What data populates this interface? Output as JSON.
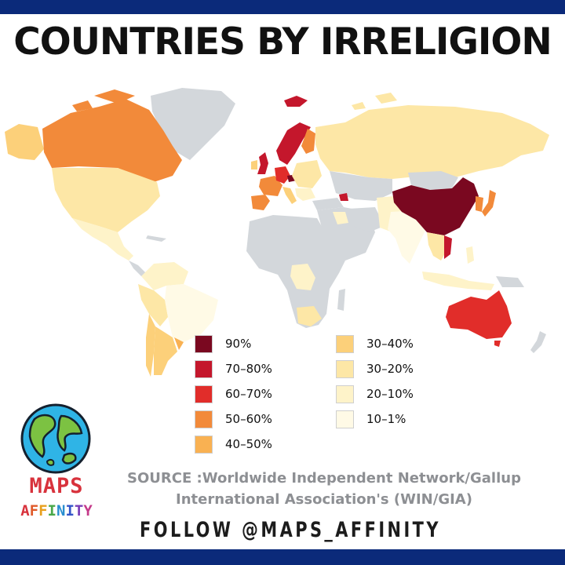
{
  "title": "COUNTRIES BY IRRELIGION",
  "legend": [
    {
      "label": "90%",
      "color": "#7a0820"
    },
    {
      "label": "70–80%",
      "color": "#c4172c"
    },
    {
      "label": "60–70%",
      "color": "#e12d2a"
    },
    {
      "label": "50–60%",
      "color": "#f28a3a"
    },
    {
      "label": "40–50%",
      "color": "#f9b152"
    },
    {
      "label": "30–40%",
      "color": "#fcd07a"
    },
    {
      "label": "30–20%",
      "color": "#fde7a6"
    },
    {
      "label": "20–10%",
      "color": "#fef3c9"
    },
    {
      "label": "10–1%",
      "color": "#fffae6"
    }
  ],
  "no_data_color": "#d3d7db",
  "logo": {
    "line1": "MAPS",
    "line2_letters": [
      "A",
      "F",
      "F",
      "I",
      "N",
      "I",
      "T",
      "Y"
    ],
    "line2_colors": [
      "#d8323c",
      "#e05b2b",
      "#e8a01f",
      "#4aa84a",
      "#2a8fd0",
      "#3456c8",
      "#7a3fb8",
      "#c53a8a"
    ]
  },
  "source_line1": "SOURCE :Worldwide Independent Network/Gallup",
  "source_line2": "International Association's (WIN/GIA)",
  "follow": "FOLLOW @MAPS_AFFINITY"
}
